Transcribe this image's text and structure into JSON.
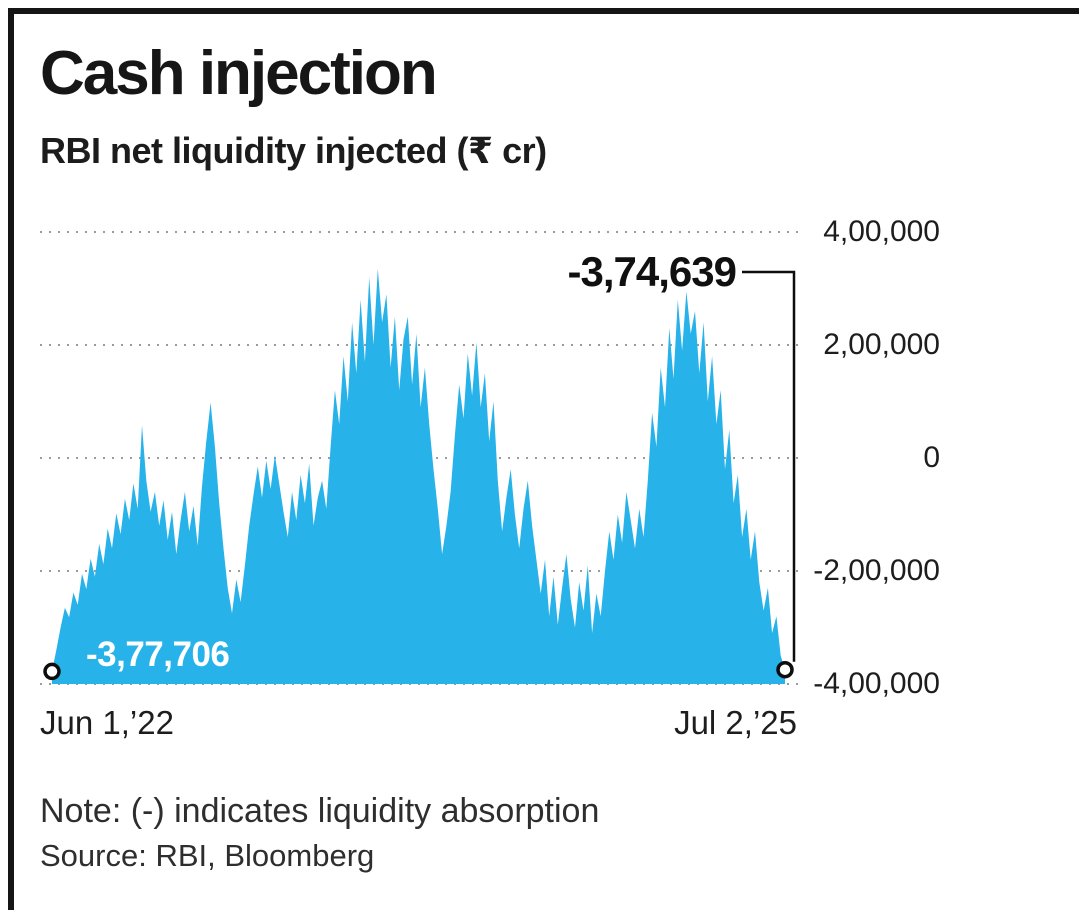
{
  "header": {
    "title": "Cash injection",
    "subtitle": "RBI net liquidity injected (₹ cr)"
  },
  "footer": {
    "note": "Note: (-) indicates liquidity absorption",
    "source": "Source: RBI, Bloomberg"
  },
  "chart_data": {
    "type": "area",
    "title": "Cash injection",
    "subtitle": "RBI net liquidity injected (₹ cr)",
    "unit": "₹ cr",
    "grid": "horizontal-dashed",
    "legend": "none",
    "area_color": "#27b2e9",
    "ylim": [
      -400000,
      400000
    ],
    "y_ticks": [
      {
        "value": 400000,
        "label": "4,00,000"
      },
      {
        "value": 200000,
        "label": "2,00,000"
      },
      {
        "value": 0,
        "label": "0"
      },
      {
        "value": -200000,
        "label": "-2,00,000"
      },
      {
        "value": -400000,
        "label": "-4,00,000"
      }
    ],
    "x_tick_labels": [
      "Jun 1,’22",
      "Jul 2,’25"
    ],
    "first_point": {
      "x": "Jun 1,’22",
      "value": -377706,
      "label": "-3,77,706"
    },
    "last_point": {
      "x": "Jul 2,’25",
      "value": -374639,
      "label": "-3,74,639"
    },
    "values": [
      -377706,
      -340000,
      -300000,
      -265000,
      -282000,
      -238000,
      -260000,
      -205000,
      -232000,
      -178000,
      -210000,
      -152000,
      -188000,
      -125000,
      -160000,
      -98000,
      -135000,
      -72000,
      -110000,
      -45000,
      -90000,
      58000,
      -40000,
      -95000,
      -60000,
      -120000,
      -75000,
      -145000,
      -95000,
      -170000,
      -110000,
      -60000,
      -130000,
      -85000,
      -155000,
      -50000,
      30000,
      98000,
      20000,
      -80000,
      -160000,
      -230000,
      -275000,
      -215000,
      -255000,
      -190000,
      -120000,
      -65000,
      -15000,
      -70000,
      -5000,
      -55000,
      5000,
      -45000,
      -95000,
      -140000,
      -60000,
      -110000,
      -30000,
      -80000,
      -10000,
      -120000,
      -70000,
      -40000,
      -90000,
      20000,
      120000,
      60000,
      180000,
      100000,
      240000,
      150000,
      280000,
      170000,
      320000,
      200000,
      335000,
      240000,
      290000,
      160000,
      250000,
      120000,
      210000,
      250000,
      130000,
      220000,
      90000,
      160000,
      60000,
      -20000,
      -90000,
      -170000,
      -120000,
      -60000,
      40000,
      130000,
      70000,
      185000,
      110000,
      205000,
      90000,
      150000,
      30000,
      100000,
      -40000,
      -130000,
      -70000,
      -20000,
      -100000,
      -160000,
      -90000,
      -40000,
      -120000,
      -180000,
      -240000,
      -180000,
      -280000,
      -210000,
      -295000,
      -230000,
      -170000,
      -250000,
      -300000,
      -220000,
      -270000,
      -190000,
      -310000,
      -240000,
      -280000,
      -200000,
      -130000,
      -180000,
      -100000,
      -150000,
      -60000,
      -110000,
      -160000,
      -90000,
      -140000,
      -40000,
      80000,
      20000,
      160000,
      90000,
      230000,
      140000,
      280000,
      190000,
      295000,
      220000,
      260000,
      150000,
      240000,
      100000,
      180000,
      60000,
      120000,
      -20000,
      50000,
      -80000,
      -30000,
      -140000,
      -90000,
      -180000,
      -130000,
      -220000,
      -270000,
      -230000,
      -310000,
      -280000,
      -350000,
      -374639
    ]
  }
}
